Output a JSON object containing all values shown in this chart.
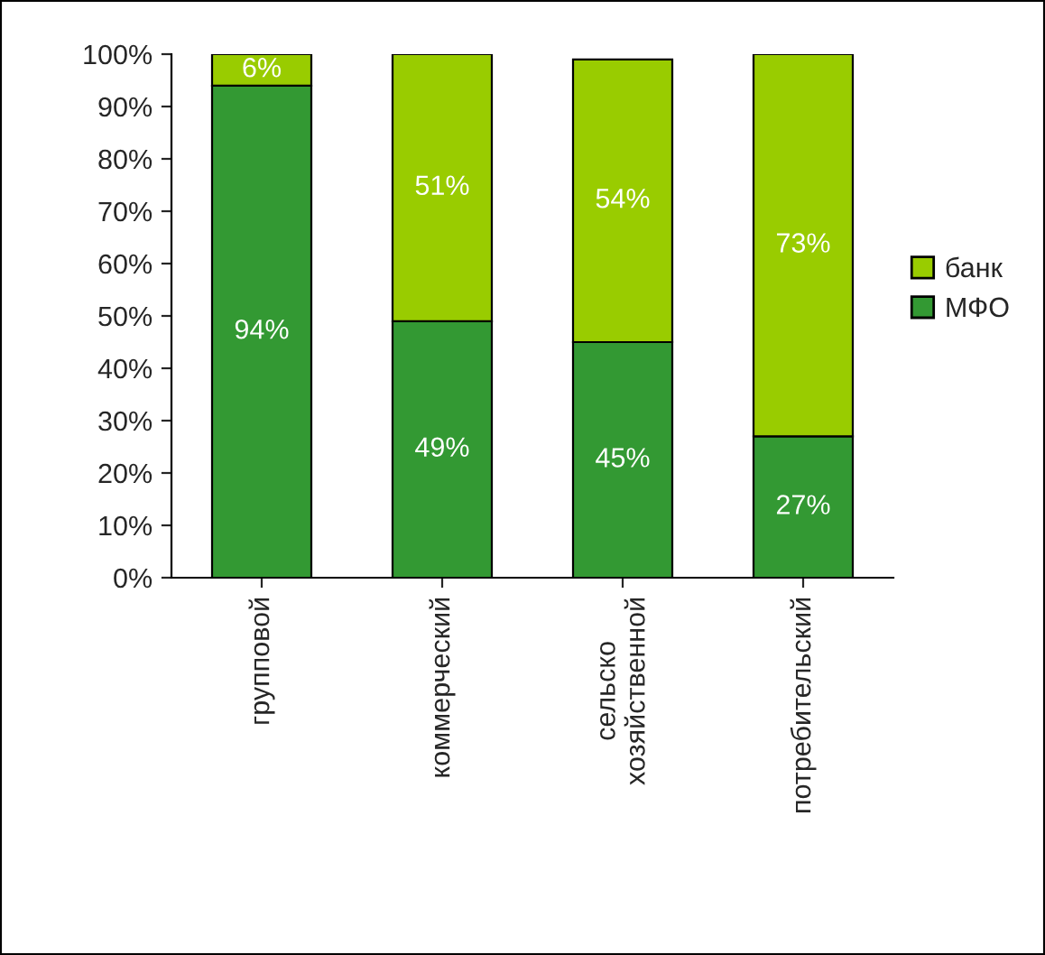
{
  "chart_data": {
    "type": "bar",
    "stacked": true,
    "categories": [
      "групповой",
      "коммерческий",
      "сельско\nхозяйственной",
      "потребительский"
    ],
    "series": [
      {
        "name": "МФО",
        "color": "#339933",
        "values": [
          94,
          49,
          45,
          27
        ],
        "value_labels": [
          "94%",
          "49%",
          "45%",
          "27%"
        ]
      },
      {
        "name": "банк",
        "color": "#99cc00",
        "values": [
          6,
          51,
          54,
          73
        ],
        "value_labels": [
          "6%",
          "51%",
          "54%",
          "73%"
        ]
      }
    ],
    "ylim": [
      0,
      100
    ],
    "yticks": [
      {
        "value": 0,
        "label": "0%"
      },
      {
        "value": 10,
        "label": "10%"
      },
      {
        "value": 20,
        "label": "20%"
      },
      {
        "value": 30,
        "label": "30%"
      },
      {
        "value": 40,
        "label": "40%"
      },
      {
        "value": 50,
        "label": "50%"
      },
      {
        "value": 60,
        "label": "60%"
      },
      {
        "value": 70,
        "label": "70%"
      },
      {
        "value": 80,
        "label": "80%"
      },
      {
        "value": 90,
        "label": "90%"
      },
      {
        "value": 100,
        "label": "100%"
      }
    ],
    "legend": "right",
    "grid": false
  }
}
